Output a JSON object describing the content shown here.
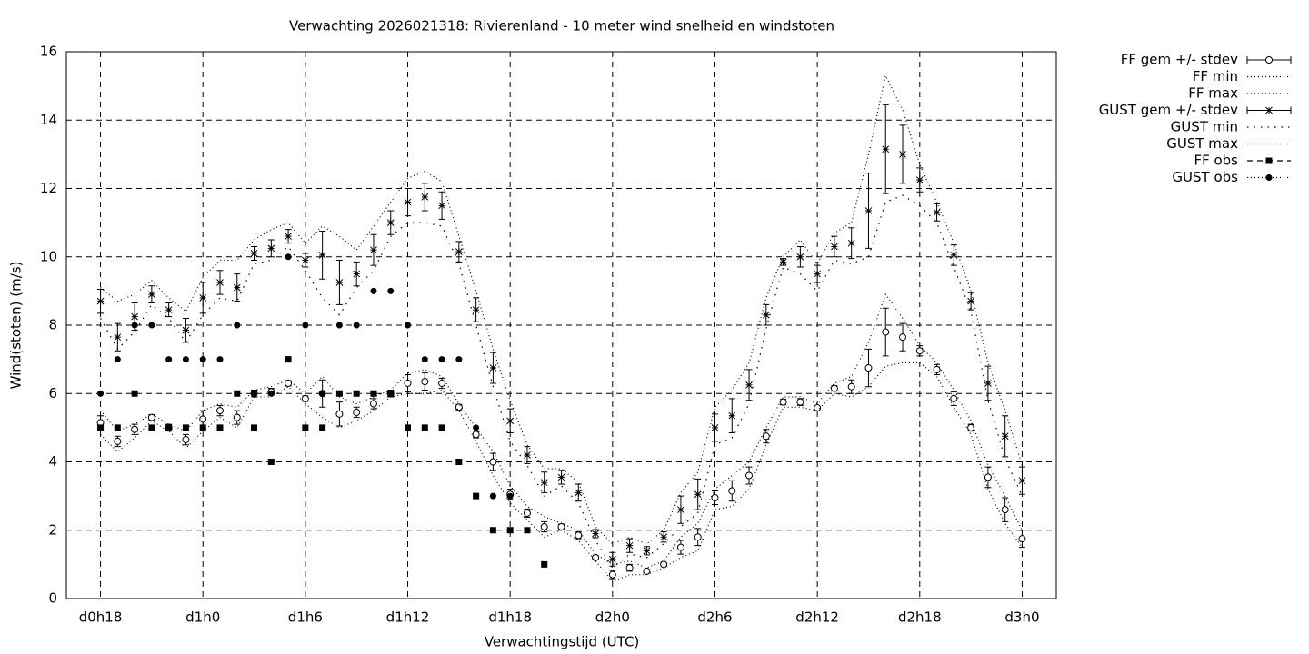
{
  "chart_data": {
    "type": "errorbar-line",
    "title": "Verwachting 2026021318: Rivierenland - 10 meter wind snelheid en windstoten",
    "x_label": "Verwachtingstijd (UTC)",
    "y_label": "Wind(stoten) (m/s)",
    "xlim": [
      16,
      74
    ],
    "ylim": [
      0,
      16
    ],
    "xticks": [
      {
        "value": 18,
        "label": "d0h18"
      },
      {
        "value": 24,
        "label": "d1h0"
      },
      {
        "value": 30,
        "label": "d1h6"
      },
      {
        "value": 36,
        "label": "d1h12"
      },
      {
        "value": 42,
        "label": "d1h18"
      },
      {
        "value": 48,
        "label": "d2h0"
      },
      {
        "value": 54,
        "label": "d2h6"
      },
      {
        "value": 60,
        "label": "d2h12"
      },
      {
        "value": 66,
        "label": "d2h18"
      },
      {
        "value": 72,
        "label": "d3h0"
      }
    ],
    "yticks": [
      0,
      2,
      4,
      6,
      8,
      10,
      12,
      14,
      16
    ],
    "grid": true,
    "legend": "outside-right-top",
    "x": [
      18,
      19,
      20,
      21,
      22,
      23,
      24,
      25,
      26,
      27,
      28,
      29,
      30,
      31,
      32,
      33,
      34,
      35,
      36,
      37,
      38,
      39,
      40,
      41,
      42,
      43,
      44,
      45,
      46,
      47,
      48,
      49,
      50,
      51,
      52,
      53,
      54,
      55,
      56,
      57,
      58,
      59,
      60,
      61,
      62,
      63,
      64,
      65,
      66,
      67,
      68,
      69,
      70,
      71,
      72
    ],
    "series": [
      {
        "name": "FF gem +/- stdev",
        "color": "#000000",
        "marker": "circle",
        "line": "none",
        "values": [
          5.15,
          4.6,
          4.95,
          5.3,
          5.0,
          4.65,
          5.25,
          5.5,
          5.3,
          6.0,
          6.05,
          6.3,
          5.85,
          6.0,
          5.4,
          5.45,
          5.7,
          6.0,
          6.3,
          6.35,
          6.3,
          5.6,
          4.8,
          4.0,
          3.05,
          2.5,
          2.1,
          2.1,
          1.85,
          1.2,
          0.7,
          0.9,
          0.8,
          1.0,
          1.5,
          1.8,
          2.95,
          3.15,
          3.6,
          4.75,
          5.75,
          5.75,
          5.58,
          6.15,
          6.2,
          6.75,
          7.8,
          7.65,
          7.25,
          6.7,
          5.85,
          5.0,
          3.55,
          2.6,
          1.75
        ],
        "errors": [
          0.2,
          0.15,
          0.15,
          0.08,
          0.1,
          0.15,
          0.25,
          0.15,
          0.2,
          0.1,
          0.1,
          0.08,
          0.08,
          0.4,
          0.35,
          0.15,
          0.15,
          0.1,
          0.25,
          0.25,
          0.15,
          0.08,
          0.1,
          0.25,
          0.15,
          0.12,
          0.15,
          0.08,
          0.1,
          0.05,
          0.12,
          0.1,
          0.05,
          0.05,
          0.2,
          0.25,
          0.2,
          0.3,
          0.25,
          0.2,
          0.08,
          0.1,
          0.05,
          0.08,
          0.2,
          0.55,
          0.7,
          0.4,
          0.15,
          0.15,
          0.2,
          0.1,
          0.3,
          0.35,
          0.25
        ]
      },
      {
        "name": "FF min",
        "color": "#000000",
        "marker": "none",
        "line": "dotted",
        "values": [
          4.8,
          4.3,
          4.7,
          5.2,
          4.9,
          4.4,
          4.9,
          5.3,
          5.0,
          5.9,
          5.9,
          6.2,
          5.7,
          5.3,
          5.0,
          5.2,
          5.5,
          5.9,
          6.0,
          6.0,
          6.1,
          5.5,
          4.6,
          3.6,
          2.8,
          2.3,
          1.8,
          2.0,
          1.7,
          1.1,
          0.5,
          0.7,
          0.7,
          0.9,
          1.2,
          1.4,
          2.6,
          2.7,
          3.2,
          4.5,
          5.6,
          5.6,
          5.5,
          6.0,
          5.9,
          6.2,
          6.8,
          6.9,
          6.9,
          6.5,
          5.6,
          4.8,
          3.2,
          2.2,
          1.5
        ]
      },
      {
        "name": "FF max",
        "color": "#000000",
        "marker": "none",
        "line": "dotted",
        "values": [
          5.5,
          4.9,
          5.1,
          5.4,
          5.1,
          4.9,
          5.5,
          5.7,
          5.6,
          6.1,
          6.2,
          6.4,
          6.0,
          6.5,
          5.9,
          5.7,
          5.9,
          6.1,
          6.6,
          6.7,
          6.5,
          5.7,
          5.0,
          4.3,
          3.3,
          2.7,
          2.4,
          2.2,
          2.0,
          1.3,
          1.0,
          1.1,
          0.9,
          1.1,
          1.8,
          2.2,
          3.2,
          3.6,
          4.0,
          5.0,
          5.9,
          5.9,
          5.7,
          6.3,
          6.5,
          7.5,
          8.9,
          8.2,
          7.4,
          6.9,
          6.1,
          5.2,
          3.9,
          3.0,
          2.0
        ]
      },
      {
        "name": "GUST gem +/- stdev",
        "color": "#000000",
        "marker": "star",
        "line": "none",
        "values": [
          8.7,
          7.65,
          8.25,
          8.9,
          8.45,
          7.85,
          8.8,
          9.25,
          9.1,
          10.1,
          10.25,
          10.6,
          9.9,
          10.05,
          9.25,
          9.5,
          10.2,
          11.0,
          11.6,
          11.75,
          11.5,
          10.15,
          8.45,
          6.75,
          5.2,
          4.2,
          3.4,
          3.55,
          3.1,
          1.9,
          1.15,
          1.55,
          1.4,
          1.8,
          2.6,
          3.05,
          5.0,
          5.35,
          6.25,
          8.3,
          9.85,
          10.0,
          9.5,
          10.3,
          10.4,
          11.35,
          13.15,
          13.0,
          12.25,
          11.3,
          10.05,
          8.7,
          6.3,
          4.75,
          3.45
        ],
        "errors": [
          0.35,
          0.4,
          0.4,
          0.25,
          0.2,
          0.35,
          0.45,
          0.35,
          0.4,
          0.2,
          0.25,
          0.2,
          0.2,
          0.7,
          0.65,
          0.35,
          0.45,
          0.35,
          0.4,
          0.4,
          0.4,
          0.3,
          0.35,
          0.45,
          0.35,
          0.25,
          0.3,
          0.2,
          0.25,
          0.12,
          0.2,
          0.2,
          0.12,
          0.15,
          0.4,
          0.45,
          0.4,
          0.5,
          0.45,
          0.3,
          0.1,
          0.3,
          0.25,
          0.3,
          0.45,
          1.1,
          1.3,
          0.85,
          0.35,
          0.25,
          0.3,
          0.25,
          0.5,
          0.6,
          0.4
        ]
      },
      {
        "name": "GUST min",
        "color": "#000000",
        "marker": "none",
        "line": "dotted-sparse",
        "values": [
          8.2,
          7.3,
          7.8,
          8.6,
          8.2,
          7.5,
          8.3,
          8.8,
          8.7,
          9.8,
          9.9,
          10.3,
          9.6,
          8.8,
          8.3,
          9.1,
          9.6,
          10.6,
          11.0,
          11.0,
          10.9,
          9.8,
          8.0,
          6.2,
          4.6,
          3.9,
          3.0,
          3.3,
          2.8,
          1.7,
          0.9,
          1.3,
          1.2,
          1.6,
          2.1,
          2.5,
          4.5,
          4.7,
          5.7,
          7.9,
          9.7,
          9.5,
          9.0,
          9.9,
          9.8,
          10.0,
          11.6,
          11.8,
          11.5,
          11.0,
          9.7,
          8.4,
          5.8,
          4.1,
          3.0
        ]
      },
      {
        "name": "GUST max",
        "color": "#000000",
        "marker": "none",
        "line": "dotted",
        "values": [
          9.1,
          8.7,
          8.9,
          9.3,
          8.8,
          8.4,
          9.4,
          9.9,
          9.9,
          10.5,
          10.8,
          11.0,
          10.4,
          10.9,
          10.6,
          10.2,
          10.9,
          11.6,
          12.3,
          12.5,
          12.2,
          10.6,
          9.0,
          7.3,
          5.8,
          4.5,
          3.8,
          3.8,
          3.4,
          2.1,
          1.6,
          1.8,
          1.6,
          2.0,
          3.1,
          3.7,
          5.6,
          6.1,
          6.9,
          8.8,
          10.0,
          10.5,
          9.8,
          10.7,
          11.0,
          13.0,
          15.3,
          14.3,
          12.7,
          11.6,
          10.4,
          9.0,
          6.9,
          5.5,
          3.9
        ]
      },
      {
        "name": "FF obs",
        "color": "#000000",
        "marker": "square",
        "line": "dashed",
        "values": [
          5,
          5,
          6,
          5,
          5,
          5,
          5,
          5,
          6,
          5,
          4,
          7,
          5,
          5,
          6,
          6,
          6,
          6,
          5,
          5,
          5,
          4,
          3,
          2,
          2,
          2,
          1,
          null,
          null,
          null,
          null,
          null,
          null,
          null,
          null,
          null,
          null,
          null,
          null,
          null,
          null,
          null,
          null,
          null,
          null,
          null,
          null,
          null,
          null,
          null,
          null,
          null,
          null,
          null,
          null
        ]
      },
      {
        "name": "GUST obs",
        "color": "#000000",
        "marker": "dot",
        "line": "dotted",
        "values": [
          6,
          7,
          8,
          8,
          7,
          7,
          7,
          7,
          8,
          6,
          6,
          10,
          8,
          6,
          8,
          8,
          9,
          9,
          8,
          7,
          7,
          7,
          5,
          3,
          3,
          null,
          null,
          null,
          null,
          null,
          null,
          null,
          null,
          null,
          null,
          null,
          null,
          null,
          null,
          null,
          null,
          null,
          null,
          null,
          null,
          null,
          null,
          null,
          null,
          null,
          null,
          null,
          null,
          null,
          null
        ]
      }
    ]
  }
}
